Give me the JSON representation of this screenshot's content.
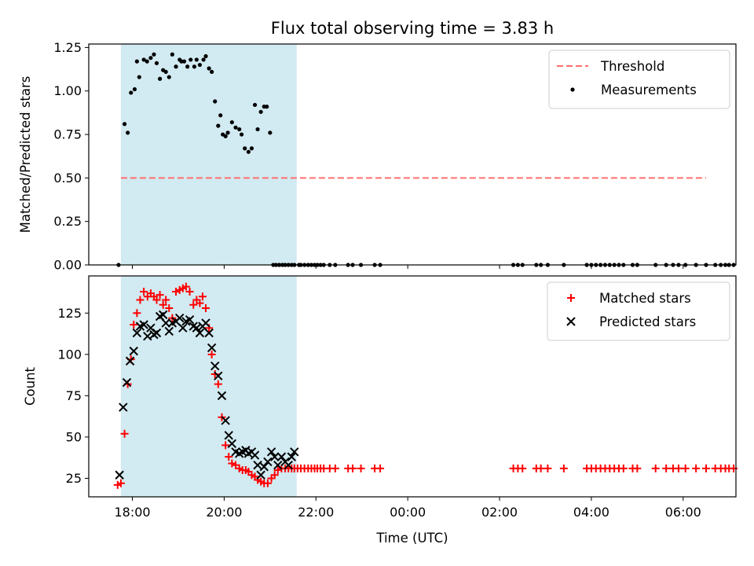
{
  "figure": {
    "title": "Flux total observing time = 3.83 h",
    "xlabel": "Time (UTC)",
    "xticks": [
      "18:00",
      "20:00",
      "22:00",
      "00:00",
      "02:00",
      "04:00",
      "06:00"
    ]
  },
  "colors": {
    "shade": "#add8e6",
    "threshold": "#ff6f6f",
    "measurements": "#000000",
    "matched": "#ff0000",
    "predicted": "#000000"
  },
  "chart_data": [
    {
      "type": "scatter",
      "panel": "top",
      "ylabel": "Matched/Predicted stars",
      "xlim": [
        17.05,
        31.15
      ],
      "ylim": [
        0,
        1.27
      ],
      "yticks": [
        "0.00",
        "0.25",
        "0.50",
        "0.75",
        "1.00",
        "1.25"
      ],
      "ytick_values": [
        0,
        0.25,
        0.5,
        0.75,
        1.0,
        1.25
      ],
      "shaded_interval": [
        17.75,
        21.58
      ],
      "legend_position": "top-right",
      "threshold": {
        "name": "Threshold",
        "y": 0.5,
        "x_range": [
          17.75,
          30.5
        ]
      },
      "series": [
        {
          "name": "Measurements",
          "x": [
            17.7,
            17.83,
            17.9,
            17.97,
            18.05,
            18.1,
            18.15,
            18.25,
            18.32,
            18.4,
            18.47,
            18.53,
            18.6,
            18.67,
            18.73,
            18.8,
            18.87,
            18.95,
            19.03,
            19.07,
            19.13,
            19.2,
            19.27,
            19.35,
            19.4,
            19.47,
            19.55,
            19.6,
            19.67,
            19.73,
            19.8,
            19.87,
            19.92,
            19.97,
            20.03,
            20.08,
            20.17,
            20.25,
            20.33,
            20.38,
            20.45,
            20.53,
            20.6,
            20.67,
            20.73,
            20.8,
            20.87,
            20.93,
            21.0,
            21.07,
            21.13,
            21.2,
            21.27,
            21.33,
            21.4,
            21.47,
            21.53,
            21.63,
            21.67,
            21.75,
            21.83,
            21.9,
            21.97,
            22.03,
            22.1,
            22.17,
            22.3,
            22.42,
            22.7,
            22.8,
            22.98,
            23.28,
            23.4,
            26.3,
            26.4,
            26.5,
            26.8,
            26.9,
            27.05,
            27.4,
            27.9,
            28.0,
            28.1,
            28.2,
            28.3,
            28.4,
            28.5,
            28.6,
            28.7,
            28.9,
            29.0,
            29.4,
            29.63,
            29.78,
            29.9,
            30.05,
            30.28,
            30.5,
            30.7,
            30.82,
            30.92,
            31.0,
            31.1
          ],
          "y": [
            0.0,
            0.81,
            0.76,
            0.99,
            1.01,
            1.17,
            1.08,
            1.18,
            1.17,
            1.19,
            1.21,
            1.16,
            1.07,
            1.12,
            1.11,
            1.08,
            1.21,
            1.14,
            1.18,
            1.17,
            1.17,
            1.14,
            1.18,
            1.14,
            1.18,
            1.15,
            1.18,
            1.2,
            1.13,
            1.11,
            0.94,
            0.8,
            0.86,
            0.75,
            0.74,
            0.76,
            0.82,
            0.79,
            0.78,
            0.75,
            0.67,
            0.65,
            0.67,
            0.92,
            0.78,
            0.88,
            0.91,
            0.91,
            0.76,
            0.0,
            0.0,
            0.0,
            0.0,
            0.0,
            0.0,
            0.0,
            0.0,
            0.0,
            0.0,
            0.0,
            0.0,
            0.0,
            0.0,
            0.0,
            0.0,
            0.0,
            0.0,
            0.0,
            0.0,
            0.0,
            0.0,
            0.0,
            0.0,
            0.0,
            0.0,
            0.0,
            0.0,
            0.0,
            0.0,
            0.0,
            0.0,
            0.0,
            0.0,
            0.0,
            0.0,
            0.0,
            0.0,
            0.0,
            0.0,
            0.0,
            0.0,
            0.0,
            0.0,
            0.0,
            0.0,
            0.0,
            0.0,
            0.0,
            0.0,
            0.0,
            0.0,
            0.0,
            0.0
          ]
        }
      ]
    },
    {
      "type": "scatter",
      "panel": "bottom",
      "ylabel": "Count",
      "xlim": [
        17.05,
        31.15
      ],
      "ylim": [
        13.8,
        147.5
      ],
      "yticks": [
        "25",
        "50",
        "75",
        "100",
        "125"
      ],
      "ytick_values": [
        25,
        50,
        75,
        100,
        125
      ],
      "shaded_interval": [
        17.75,
        21.58
      ],
      "legend_position": "top-right",
      "series": [
        {
          "name": "Matched stars",
          "marker": "plus",
          "x": [
            17.68,
            17.75,
            17.83,
            17.9,
            17.97,
            18.03,
            18.1,
            18.17,
            18.25,
            18.33,
            18.4,
            18.47,
            18.53,
            18.6,
            18.67,
            18.73,
            18.8,
            18.87,
            18.95,
            19.03,
            19.1,
            19.17,
            19.25,
            19.33,
            19.4,
            19.47,
            19.53,
            19.6,
            19.67,
            19.73,
            19.8,
            19.87,
            19.95,
            20.03,
            20.1,
            20.17,
            20.25,
            20.33,
            20.4,
            20.47,
            20.53,
            20.6,
            20.67,
            20.73,
            20.8,
            20.87,
            20.95,
            21.03,
            21.1,
            21.17,
            21.25,
            21.33,
            21.4,
            21.47,
            21.53,
            21.6,
            21.67,
            21.75,
            21.83,
            21.9,
            21.97,
            22.03,
            22.1,
            22.17,
            22.3,
            22.42,
            22.7,
            22.8,
            22.98,
            23.28,
            23.4,
            26.3,
            26.4,
            26.5,
            26.8,
            26.9,
            27.05,
            27.4,
            27.9,
            28.0,
            28.1,
            28.2,
            28.3,
            28.4,
            28.5,
            28.6,
            28.7,
            28.9,
            29.0,
            29.4,
            29.63,
            29.78,
            29.9,
            30.05,
            30.28,
            30.5,
            30.7,
            30.82,
            30.92,
            31.0,
            31.1
          ],
          "y": [
            21,
            22,
            52,
            82,
            97,
            118,
            125,
            133,
            138,
            135,
            137,
            135,
            133,
            136,
            130,
            133,
            128,
            122,
            138,
            139,
            140,
            141,
            138,
            130,
            133,
            131,
            135,
            128,
            116,
            100,
            88,
            82,
            62,
            45,
            38,
            34,
            33,
            31,
            30,
            30,
            29,
            27,
            26,
            24,
            23,
            22,
            22,
            25,
            27,
            30,
            31,
            31,
            31,
            31,
            31,
            31,
            31,
            31,
            31,
            31,
            31,
            31,
            31,
            31,
            31,
            31,
            31,
            31,
            31,
            31,
            31,
            31,
            31,
            31,
            31,
            31,
            31,
            31,
            31,
            31,
            31,
            31,
            31,
            31,
            31,
            31,
            31,
            31,
            31,
            31,
            31,
            31,
            31,
            31,
            31,
            31,
            31,
            31,
            31,
            31,
            31
          ]
        },
        {
          "name": "Predicted stars",
          "marker": "x",
          "x": [
            17.72,
            17.8,
            17.88,
            17.95,
            18.03,
            18.1,
            18.17,
            18.25,
            18.33,
            18.4,
            18.47,
            18.53,
            18.6,
            18.67,
            18.73,
            18.8,
            18.87,
            18.95,
            19.03,
            19.1,
            19.17,
            19.25,
            19.33,
            19.4,
            19.47,
            19.53,
            19.6,
            19.67,
            19.73,
            19.8,
            19.87,
            19.95,
            20.03,
            20.1,
            20.17,
            20.25,
            20.33,
            20.4,
            20.47,
            20.53,
            20.6,
            20.67,
            20.73,
            20.8,
            20.87,
            20.95,
            21.03,
            21.1,
            21.17,
            21.25,
            21.33,
            21.4,
            21.47,
            21.53
          ],
          "y": [
            27,
            68,
            83,
            96,
            102,
            113,
            117,
            118,
            111,
            116,
            112,
            113,
            123,
            124,
            119,
            114,
            119,
            120,
            122,
            116,
            120,
            121,
            117,
            116,
            113,
            117,
            119,
            113,
            104,
            93,
            87,
            75,
            60,
            51,
            46,
            41,
            40,
            41,
            42,
            40,
            41,
            39,
            33,
            27,
            32,
            35,
            41,
            38,
            33,
            38,
            35,
            33,
            38,
            41
          ]
        }
      ]
    }
  ]
}
